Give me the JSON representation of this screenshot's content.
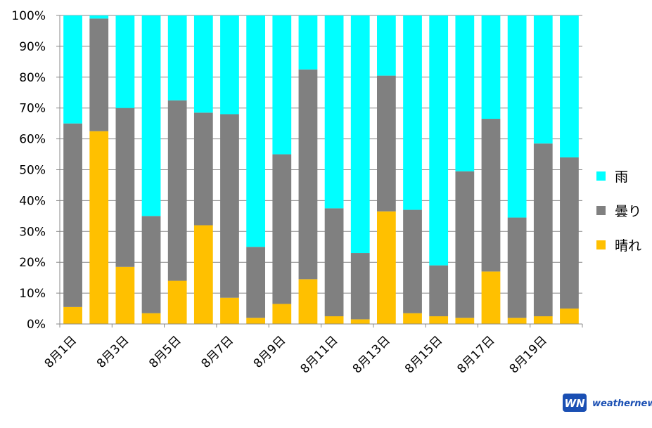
{
  "chart_data": {
    "type": "bar",
    "stacked": true,
    "categories": [
      "8月1日",
      "8月2日",
      "8月3日",
      "8月4日",
      "8月5日",
      "8月6日",
      "8月7日",
      "8月8日",
      "8月9日",
      "8月10日",
      "8月11日",
      "8月12日",
      "8月13日",
      "8月14日",
      "8月15日",
      "8月16日",
      "8月17日",
      "8月18日",
      "8月19日",
      "8月20日"
    ],
    "x_tick_labels": [
      "8月1日",
      "8月3日",
      "8月5日",
      "8月7日",
      "8月9日",
      "8月11日",
      "8月13日",
      "8月15日",
      "8月17日",
      "8月19日"
    ],
    "y_tick_labels": [
      "0%",
      "10%",
      "20%",
      "30%",
      "40%",
      "50%",
      "60%",
      "70%",
      "80%",
      "90%",
      "100%"
    ],
    "ylim": [
      0,
      100
    ],
    "y_unit": "%",
    "grid": true,
    "legend_position": "right",
    "series": [
      {
        "name": "晴れ",
        "color": "#ffc000",
        "values": [
          5.5,
          62.5,
          18.5,
          3.5,
          14,
          32,
          8.5,
          2,
          6.5,
          14.5,
          2.5,
          1.5,
          36.5,
          3.5,
          2.5,
          2,
          17,
          2,
          2.5,
          5
        ]
      },
      {
        "name": "曇り",
        "color": "#808080",
        "values": [
          59.5,
          36.5,
          51.5,
          31.5,
          58.5,
          36.5,
          59.5,
          23,
          48.5,
          68,
          35,
          21.5,
          44,
          33.5,
          16.5,
          47.5,
          49.5,
          32.5,
          56,
          49
        ]
      },
      {
        "name": "雨",
        "color": "#00ffff",
        "values": [
          35,
          1,
          30,
          65,
          27.5,
          31.5,
          32,
          75,
          45,
          17.5,
          62.5,
          77,
          19.5,
          63,
          81,
          50.5,
          33.5,
          65.5,
          41.5,
          46
        ]
      }
    ],
    "legend_order": [
      "雨",
      "曇り",
      "晴れ"
    ]
  },
  "brand": {
    "mark": "WN",
    "name": "weathernews",
    "primary_color": "#1a4fb3"
  }
}
